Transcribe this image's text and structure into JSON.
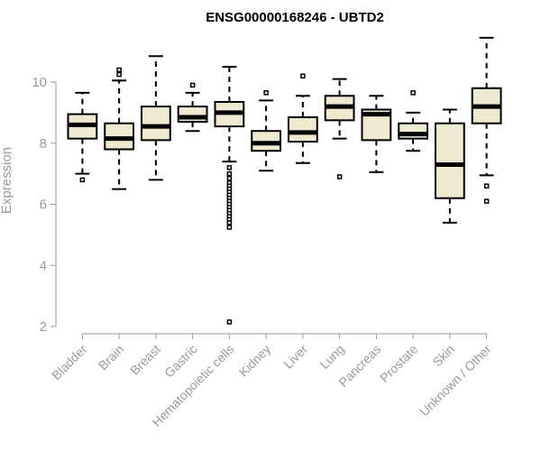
{
  "chart_data": {
    "type": "boxplot",
    "title": "ENSG00000168246 - UBTD2",
    "xlabel": "",
    "ylabel": "Expression",
    "ylim": [
      2,
      11.5
    ],
    "yticks": [
      2,
      4,
      6,
      8,
      10
    ],
    "box_fill": "#efe9cf",
    "outlier_color": "#000000",
    "categories": [
      "Bladder",
      "Brain",
      "Breast",
      "Gastric",
      "Hematopoietic cells",
      "Kidney",
      "Liver",
      "Lung",
      "Pancreas",
      "Prostate",
      "Skin",
      "Unknown / Other"
    ],
    "boxes": [
      {
        "q1": 8.15,
        "median": 8.6,
        "q3": 8.95,
        "whisker_low": 7.0,
        "whisker_high": 9.65,
        "outliers": [
          6.8
        ]
      },
      {
        "q1": 7.8,
        "median": 8.15,
        "q3": 8.65,
        "whisker_low": 6.5,
        "whisker_high": 10.05,
        "outliers": [
          10.25,
          10.4
        ]
      },
      {
        "q1": 8.1,
        "median": 8.55,
        "q3": 9.2,
        "whisker_low": 6.8,
        "whisker_high": 10.85,
        "outliers": []
      },
      {
        "q1": 8.7,
        "median": 8.85,
        "q3": 9.2,
        "whisker_low": 8.4,
        "whisker_high": 9.65,
        "outliers": [
          9.9
        ]
      },
      {
        "q1": 8.55,
        "median": 9.0,
        "q3": 9.35,
        "whisker_low": 7.4,
        "whisker_high": 10.5,
        "outliers": [
          7.2,
          7.0,
          6.85,
          6.7,
          6.6,
          6.5,
          6.4,
          6.3,
          6.2,
          6.1,
          6.0,
          5.9,
          5.8,
          5.7,
          5.6,
          5.5,
          5.4,
          5.25,
          2.15
        ]
      },
      {
        "q1": 7.75,
        "median": 8.0,
        "q3": 8.4,
        "whisker_low": 7.1,
        "whisker_high": 9.4,
        "outliers": [
          9.65
        ]
      },
      {
        "q1": 8.05,
        "median": 8.35,
        "q3": 8.85,
        "whisker_low": 7.35,
        "whisker_high": 9.55,
        "outliers": [
          10.2
        ]
      },
      {
        "q1": 8.75,
        "median": 9.2,
        "q3": 9.55,
        "whisker_low": 8.15,
        "whisker_high": 10.1,
        "outliers": [
          6.9
        ]
      },
      {
        "q1": 8.1,
        "median": 8.95,
        "q3": 9.1,
        "whisker_low": 7.05,
        "whisker_high": 9.55,
        "outliers": []
      },
      {
        "q1": 8.15,
        "median": 8.3,
        "q3": 8.65,
        "whisker_low": 7.75,
        "whisker_high": 9.0,
        "outliers": [
          9.65
        ]
      },
      {
        "q1": 6.2,
        "median": 7.3,
        "q3": 8.65,
        "whisker_low": 5.4,
        "whisker_high": 9.1,
        "outliers": []
      },
      {
        "q1": 8.65,
        "median": 9.2,
        "q3": 9.8,
        "whisker_low": 6.95,
        "whisker_high": 11.45,
        "outliers": [
          6.6,
          6.1
        ]
      }
    ]
  }
}
